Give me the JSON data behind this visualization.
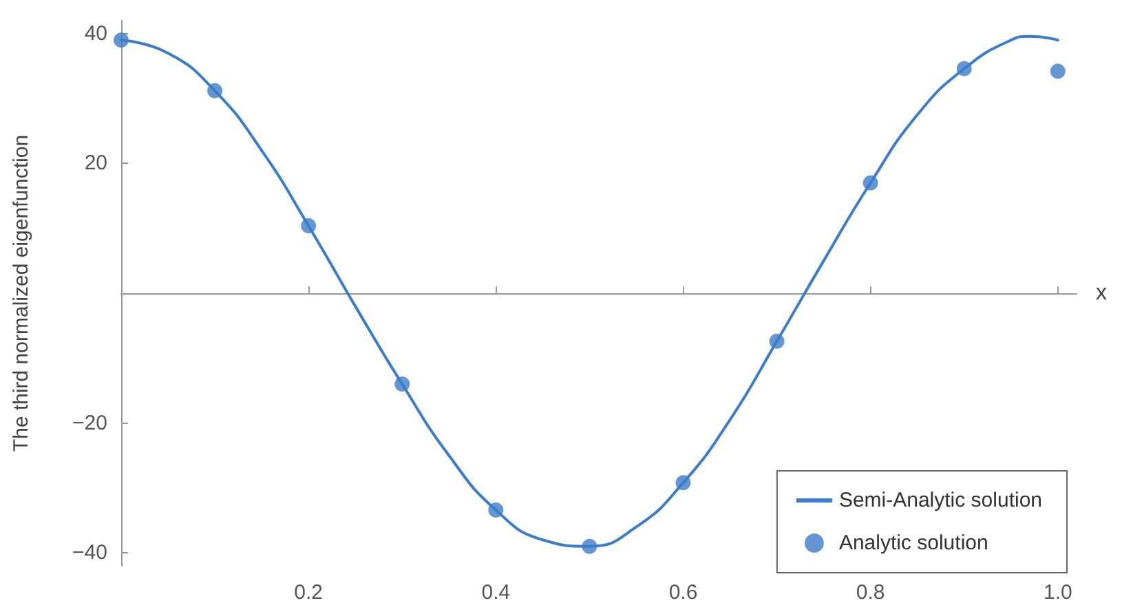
{
  "chart_data": {
    "type": "line",
    "xlabel": "x",
    "ylabel": "The third normalized eigenfunction",
    "xlim": [
      0,
      1.02
    ],
    "ylim": [
      -42,
      42
    ],
    "xticks": [
      0.2,
      0.4,
      0.6,
      0.8,
      {
        "value": 1,
        "label": "1.0"
      }
    ],
    "yticks": [
      -40,
      -20,
      20,
      40
    ],
    "series": [
      {
        "name": "Semi-Analytic solution",
        "color": "#3d7cc9",
        "marker": "none",
        "line_style": "solid",
        "x": [
          0,
          0.05,
          0.1,
          0.15,
          0.2,
          0.25,
          0.3,
          0.35,
          0.4,
          0.45,
          0.5,
          0.55,
          0.6,
          0.65,
          0.7,
          0.75,
          0.8,
          0.85,
          0.9,
          0.95,
          0.97,
          1.0
        ],
        "values": [
          39,
          37,
          31.2,
          22,
          10.4,
          -2,
          -14,
          -25,
          -33.4,
          -38,
          -39,
          -36,
          -29.2,
          -19.5,
          -7.4,
          5,
          17,
          27.5,
          34.6,
          39,
          39.6,
          39
        ]
      },
      {
        "name": "Analytic solution",
        "type": "scatter",
        "color": "#3d7cc9",
        "marker": "circle",
        "x": [
          0,
          0.1,
          0.2,
          0.3,
          0.4,
          0.5,
          0.6,
          0.7,
          0.8,
          0.9,
          1.0
        ],
        "values": [
          39,
          31.2,
          10.4,
          -14,
          -33.4,
          -39,
          -29.2,
          -7.4,
          17,
          34.6,
          34.2
        ]
      }
    ],
    "legend": "bottom right",
    "grid": false
  }
}
